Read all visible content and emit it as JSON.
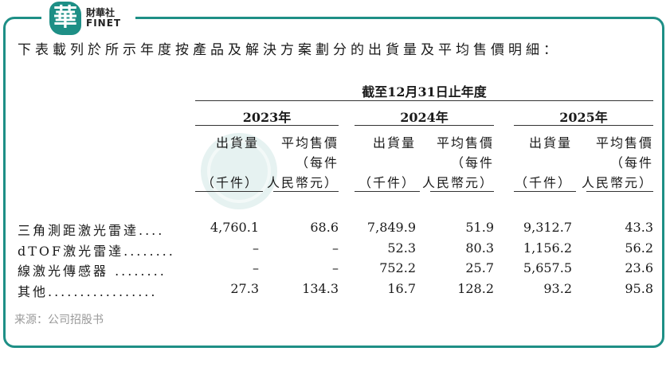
{
  "brand": {
    "logo_char": "華",
    "name_cn": "財華社",
    "name_en": "FINET"
  },
  "intro": "下表載列於所示年度按產品及解決方案劃分的出貨量及平均售價明細：",
  "period_header": "截至12月31日止年度",
  "years": [
    "2023年",
    "2024年",
    "2025年"
  ],
  "col_headers": {
    "qty": [
      "出貨量",
      "",
      "（千件）"
    ],
    "price": [
      "平均售價",
      "（每件",
      "人民幣元）"
    ]
  },
  "rows": [
    {
      "label": "三角測距激光雷達....",
      "values": [
        "4,760.1",
        "68.6",
        "7,849.9",
        "51.9",
        "9,312.7",
        "43.3"
      ]
    },
    {
      "label": "dTOF激光雷達........",
      "values": [
        "–",
        "–",
        "52.3",
        "80.3",
        "1,156.2",
        "56.2"
      ]
    },
    {
      "label": "線激光傳感器 ........",
      "values": [
        "–",
        "–",
        "752.2",
        "25.7",
        "5,657.5",
        "23.6"
      ]
    },
    {
      "label": "其他.................",
      "values": [
        "27.3",
        "134.3",
        "16.7",
        "128.2",
        "93.2",
        "95.8"
      ]
    }
  ],
  "source": "来源：公司招股书",
  "colors": {
    "accent": "#1e8f86"
  }
}
